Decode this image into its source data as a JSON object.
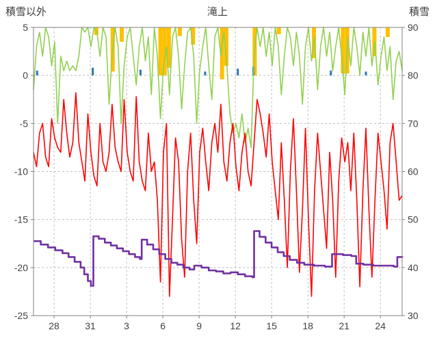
{
  "chart_data": {
    "type": "line",
    "title": "滝上",
    "left_axis": {
      "label": "積雪以外",
      "max": 5,
      "min": -25,
      "ticks": [
        5,
        0,
        -5,
        -10,
        -15,
        -20,
        -25
      ]
    },
    "right_axis": {
      "label": "積雪",
      "max": 90,
      "min": 30,
      "ticks": [
        90,
        80,
        70,
        60,
        50,
        40,
        30
      ]
    },
    "x_domain": [
      0,
      30.5
    ],
    "x_ticks": {
      "days": [
        1.7,
        4.7,
        7.7,
        10.7,
        13.7,
        16.7,
        19.7,
        22.7,
        25.7,
        28.7
      ],
      "labels": [
        "28",
        "31",
        "3",
        "6",
        "9",
        "12",
        "15",
        "18",
        "21",
        "24"
      ]
    },
    "grid": {
      "on": true,
      "color": "#bfbfbf",
      "frame_color": "#808080"
    },
    "legend_position": "none",
    "series": [
      {
        "name": "orange-bars",
        "kind": "bars-top",
        "axis": "left",
        "color": "#FFC000",
        "bars": [
          [
            5.2,
            0.8
          ],
          [
            6.55,
            4.6
          ],
          [
            7.3,
            1.5
          ],
          [
            10.5,
            5
          ],
          [
            10.85,
            5
          ],
          [
            11.2,
            4.2
          ],
          [
            12.1,
            0.9
          ],
          [
            13.2,
            1.8
          ],
          [
            15.6,
            5.4
          ],
          [
            15.95,
            4
          ],
          [
            18.3,
            5
          ],
          [
            20.3,
            0.7
          ],
          [
            23.2,
            3.2
          ],
          [
            25.6,
            4.8
          ],
          [
            25.95,
            4.8
          ],
          [
            28.2,
            3
          ],
          [
            29.3,
            1
          ]
        ]
      },
      {
        "name": "blue-bars",
        "kind": "bars-zero",
        "axis": "left",
        "color": "#2E75B6",
        "bars": [
          [
            0.3,
            0.5
          ],
          [
            4.9,
            0.8
          ],
          [
            8.85,
            0.6
          ],
          [
            14.2,
            0.4
          ],
          [
            16.9,
            0.7
          ],
          [
            18.2,
            0.9
          ],
          [
            24.6,
            0.5
          ],
          [
            27.5,
            0.4
          ]
        ]
      },
      {
        "name": "green-line",
        "kind": "line",
        "axis": "left",
        "color": "#92D050",
        "x_start": 0,
        "sample_interval_days": 0.25,
        "clamp_max": 5,
        "values": [
          -1.5,
          3,
          4.5,
          2,
          5,
          4,
          1,
          3.5,
          -5,
          2,
          0.5,
          1.5,
          0.5,
          1,
          0.5,
          2,
          5,
          4.5,
          5,
          3,
          5,
          4.5,
          2,
          5,
          4,
          -3,
          2,
          5,
          3,
          -5,
          1,
          4,
          5,
          2,
          -1,
          3,
          5,
          1.5,
          4,
          -2,
          5,
          2,
          -4.5,
          1,
          3,
          -2,
          4,
          5,
          2,
          -3.5,
          1,
          4.5,
          5,
          2,
          -5,
          0.5,
          3,
          5,
          1,
          -2.5,
          4,
          5,
          2,
          4.5,
          1,
          -4,
          -6,
          -5,
          -6.5,
          -4,
          -7,
          -5.5,
          -7.5,
          2,
          5,
          3,
          5,
          2,
          4.5,
          1,
          5,
          3,
          -2,
          2,
          5,
          4,
          1,
          4.5,
          2,
          -3,
          3,
          5,
          1.5,
          4,
          -1.5,
          3,
          5,
          2,
          4.5,
          0.5,
          3,
          5,
          2,
          -2,
          4,
          1,
          5,
          3,
          0,
          4.5,
          2,
          5,
          1,
          3.5,
          -1,
          2,
          4,
          0.5,
          3,
          -2.5,
          1.5,
          2.5,
          0.5
        ]
      },
      {
        "name": "red-line",
        "kind": "line",
        "axis": "left",
        "color": "#FF0000",
        "x_start": 0,
        "sample_interval_days": 0.25,
        "values": [
          -8,
          -9.5,
          -6,
          -5,
          -8.5,
          -9.5,
          -4.5,
          -6.5,
          -7.5,
          -8,
          -2.5,
          -6,
          -8.5,
          -7,
          -1.8,
          -7,
          -9,
          -11,
          -4,
          -8,
          -10.5,
          -11.5,
          -5,
          -9,
          -10,
          -8,
          -3,
          -7.5,
          -9,
          -10,
          -2.5,
          -8,
          -10,
          -11,
          -2.2,
          -9,
          -11,
          -12,
          -6,
          -10,
          -9,
          -13,
          -21.5,
          -8,
          -5,
          -23,
          -15,
          -6.5,
          -9,
          -17,
          -21,
          -10,
          -6,
          -13,
          -17.5,
          -8,
          -5.5,
          -9,
          -12,
          -7,
          -5,
          -8,
          -3,
          -9,
          -11,
          -7,
          -5,
          -9.5,
          -12,
          -8,
          -6,
          -10,
          -11.5,
          -7,
          -2.5,
          -4,
          -6,
          -8.5,
          -4,
          -9,
          -12,
          -15,
          -7,
          -13,
          -20,
          -10,
          -4.5,
          -12,
          -20.5,
          -14,
          -5.5,
          -15,
          -23,
          -12,
          -6,
          -10,
          -14,
          -18,
          -8,
          -13,
          -21,
          -11,
          -6.5,
          -9,
          -7,
          -12,
          -6,
          -13,
          -22,
          -12,
          -5.5,
          -14,
          -21,
          -13,
          -6,
          -9,
          -12,
          -16,
          -7,
          -5,
          -9,
          -13,
          -12.5
        ]
      },
      {
        "name": "purple-step-line",
        "kind": "step",
        "axis": "right",
        "color": "#7030A0",
        "points": [
          [
            0,
            45.5
          ],
          [
            0.6,
            44.8
          ],
          [
            1.2,
            44.2
          ],
          [
            1.8,
            43.6
          ],
          [
            2.4,
            43
          ],
          [
            2.9,
            42.2
          ],
          [
            3.4,
            41.2
          ],
          [
            3.9,
            40
          ],
          [
            4.2,
            38.6
          ],
          [
            4.5,
            37.2
          ],
          [
            4.75,
            36.2
          ],
          [
            4.95,
            46.5
          ],
          [
            5.4,
            46
          ],
          [
            5.9,
            45.2
          ],
          [
            6.4,
            44.6
          ],
          [
            6.9,
            44
          ],
          [
            7.4,
            43.4
          ],
          [
            7.9,
            42.8
          ],
          [
            8.4,
            42.2
          ],
          [
            8.8,
            41.8
          ],
          [
            8.95,
            45.8
          ],
          [
            9.4,
            44.8
          ],
          [
            9.9,
            43.8
          ],
          [
            10.4,
            42.8
          ],
          [
            10.9,
            41.8
          ],
          [
            11.4,
            41
          ],
          [
            11.9,
            40.6
          ],
          [
            12.4,
            40
          ],
          [
            12.9,
            39.6
          ],
          [
            13.3,
            40.4
          ],
          [
            13.9,
            40
          ],
          [
            14.5,
            39.4
          ],
          [
            15.1,
            39.2
          ],
          [
            15.7,
            38.8
          ],
          [
            16.3,
            39
          ],
          [
            16.9,
            38.6
          ],
          [
            17.5,
            38.2
          ],
          [
            18.1,
            38
          ],
          [
            18.25,
            47.6
          ],
          [
            18.7,
            46.4
          ],
          [
            19.2,
            45.2
          ],
          [
            19.7,
            44.2
          ],
          [
            20.2,
            43.2
          ],
          [
            20.7,
            42.4
          ],
          [
            21.2,
            41.6
          ],
          [
            21.8,
            41
          ],
          [
            22.4,
            40.6
          ],
          [
            23.2,
            40.4
          ],
          [
            24.1,
            40.2
          ],
          [
            24.7,
            42.8
          ],
          [
            25.6,
            42.6
          ],
          [
            26.3,
            42.4
          ],
          [
            26.7,
            40.8
          ],
          [
            27.3,
            40.6
          ],
          [
            28.1,
            40.4
          ],
          [
            29,
            40.4
          ],
          [
            29.8,
            40.2
          ],
          [
            30.1,
            42.2
          ],
          [
            30.5,
            42.4
          ]
        ]
      }
    ]
  }
}
